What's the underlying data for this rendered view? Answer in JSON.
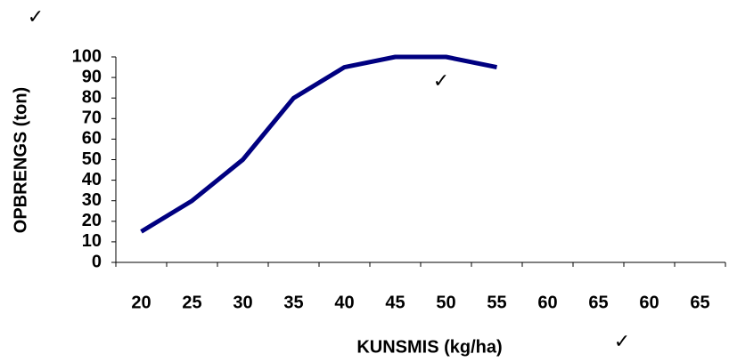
{
  "chart_data": {
    "type": "line",
    "x_label": "KUNSMIS (kg/ha)",
    "y_label": "OPBRENGS (ton)",
    "categories": [
      "20",
      "25",
      "30",
      "35",
      "40",
      "45",
      "50",
      "55",
      "60",
      "65",
      "60",
      "65"
    ],
    "series": [
      {
        "name": "OPBRENGS",
        "color": "#000080",
        "values": [
          15,
          30,
          50,
          80,
          95,
          100,
          100,
          95,
          null,
          null,
          null,
          null
        ]
      }
    ],
    "ylim": [
      0,
      100
    ],
    "yticks": [
      0,
      10,
      20,
      30,
      40,
      50,
      60,
      70,
      80,
      90,
      100
    ],
    "grid": false,
    "legend": false,
    "annotations": [
      "✓",
      "✓",
      "✓"
    ]
  }
}
